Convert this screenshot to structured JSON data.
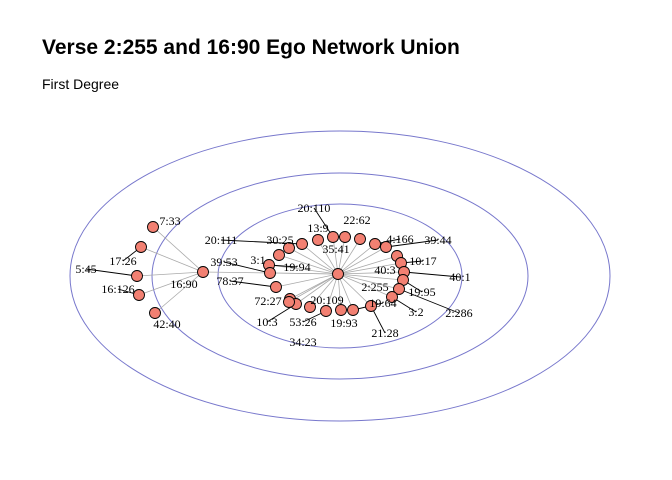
{
  "title": "Verse 2:255 and 16:90 Ego Network Union",
  "subtitle": "First Degree",
  "colors": {
    "node_fill": "#f28072",
    "ring": "#7777cc",
    "edge": "#aaaaaa"
  },
  "rings": 3,
  "hubs": [
    "2:255",
    "16:90"
  ],
  "nodes": [
    "2:255",
    "16:90",
    "7:33",
    "17:26",
    "5:45",
    "16:126",
    "42:40",
    "20:110",
    "22:62",
    "13:9",
    "35:41",
    "4:166",
    "39:44",
    "20:111",
    "30:25",
    "3:1",
    "19:94",
    "39:53",
    "78:37",
    "40:3",
    "10:17",
    "40:1",
    "19:95",
    "2:286",
    "72:27",
    "20:109",
    "10:3",
    "53:26",
    "19:93",
    "19:64",
    "3:2",
    "21:28",
    "34:23"
  ],
  "edges": [
    [
      "16:90",
      "7:33"
    ],
    [
      "16:90",
      "17:26"
    ],
    [
      "16:90",
      "5:45"
    ],
    [
      "16:90",
      "16:126"
    ],
    [
      "16:90",
      "42:40"
    ],
    [
      "16:90",
      "2:255"
    ],
    [
      "2:255",
      "20:110"
    ],
    [
      "2:255",
      "22:62"
    ],
    [
      "2:255",
      "13:9"
    ],
    [
      "2:255",
      "35:41"
    ],
    [
      "2:255",
      "4:166"
    ],
    [
      "2:255",
      "39:44"
    ],
    [
      "2:255",
      "20:111"
    ],
    [
      "2:255",
      "30:25"
    ],
    [
      "2:255",
      "3:1"
    ],
    [
      "2:255",
      "19:94"
    ],
    [
      "2:255",
      "39:53"
    ],
    [
      "2:255",
      "78:37"
    ],
    [
      "2:255",
      "40:3"
    ],
    [
      "2:255",
      "10:17"
    ],
    [
      "2:255",
      "40:1"
    ],
    [
      "2:255",
      "19:95"
    ],
    [
      "2:255",
      "2:286"
    ],
    [
      "2:255",
      "72:27"
    ],
    [
      "2:255",
      "20:109"
    ],
    [
      "2:255",
      "10:3"
    ],
    [
      "2:255",
      "53:26"
    ],
    [
      "2:255",
      "19:93"
    ],
    [
      "2:255",
      "19:64"
    ],
    [
      "2:255",
      "3:2"
    ],
    [
      "2:255",
      "21:28"
    ],
    [
      "2:255",
      "34:23"
    ]
  ]
}
